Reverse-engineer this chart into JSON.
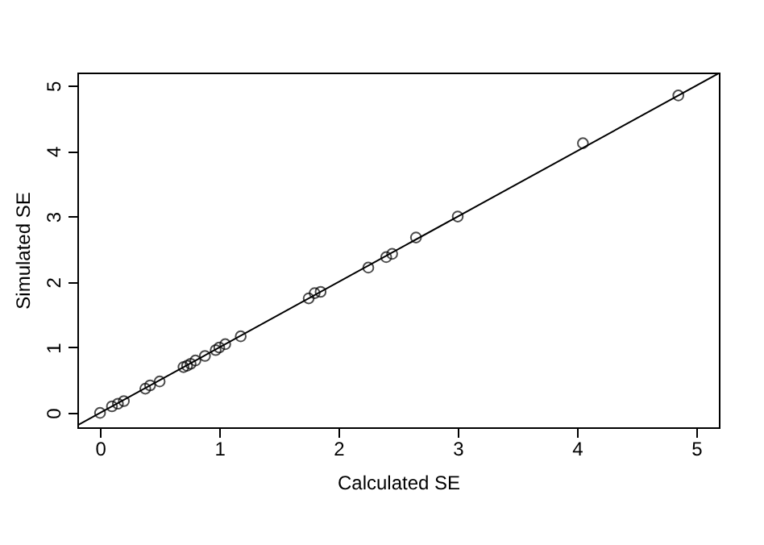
{
  "chart_data": {
    "type": "scatter",
    "xlabel": "Calculated SE",
    "ylabel": "Simulated SE",
    "xlim": [
      -0.19,
      5.19
    ],
    "ylim": [
      -0.22,
      5.2
    ],
    "xticks": [
      0,
      1,
      2,
      3,
      4,
      5
    ],
    "yticks": [
      0,
      1,
      2,
      3,
      4,
      5
    ],
    "grid": false,
    "legend": false,
    "series": [
      {
        "color": "#000000",
        "marker": "circle",
        "x": [
          0,
          0.1,
          0.15,
          0.2,
          0.38,
          0.42,
          0.5,
          0.7,
          0.73,
          0.76,
          0.8,
          0.88,
          0.97,
          1.0,
          1.05,
          1.18,
          1.75,
          1.8,
          1.85,
          2.25,
          2.4,
          2.45,
          2.65,
          3.0,
          4.05,
          4.85
        ],
        "values": [
          0,
          0.1,
          0.14,
          0.18,
          0.37,
          0.42,
          0.48,
          0.7,
          0.72,
          0.75,
          0.8,
          0.87,
          0.96,
          1.0,
          1.05,
          1.17,
          1.75,
          1.83,
          1.85,
          2.22,
          2.38,
          2.43,
          2.68,
          3.0,
          4.12,
          4.85
        ]
      },
      {
        "type": "line",
        "color": "#000000",
        "line_style": "solid",
        "x": [
          -0.19,
          5.19
        ],
        "values": [
          -0.19,
          5.19
        ]
      }
    ]
  }
}
